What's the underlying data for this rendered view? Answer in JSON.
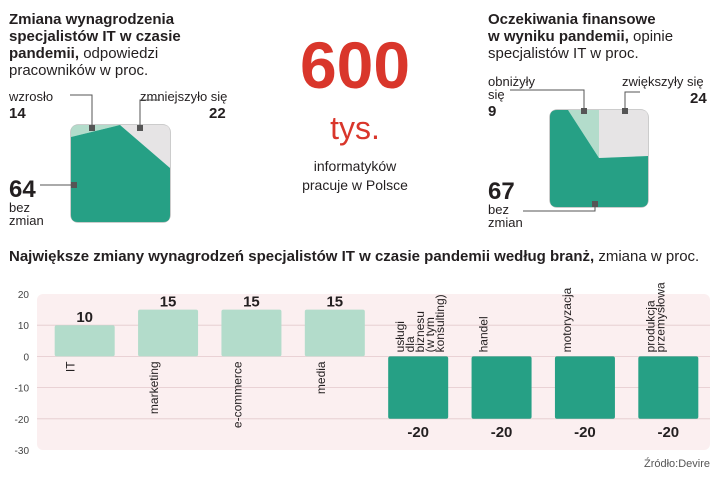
{
  "left_panel": {
    "title": "Zmiana wynagrodzenia specjalistów IT w czasie pandemii,",
    "title_lines": [
      "Zmiana wynagrodzenia",
      "specjalistów IT w czasie",
      "pandemii,"
    ],
    "subtitle_inline": "odpowiedzi",
    "subtitle_line2": "pracowników w proc.",
    "items": [
      {
        "label": "wzrosło",
        "value": "14",
        "share": 14,
        "color": "#b3dccb"
      },
      {
        "label": "zmniejszyło się",
        "value": "22",
        "share": 22,
        "color": "#e6e4e5"
      },
      {
        "label_lines": [
          "bez",
          "zmian"
        ],
        "value": "64",
        "share": 64,
        "color": "#26a085"
      }
    ]
  },
  "right_panel": {
    "title_lines": [
      "Oczekiwania finansowe",
      "w wyniku pandemii,"
    ],
    "subtitle_inline": "opinie",
    "subtitle_line2": "specjalistów IT w proc.",
    "items": [
      {
        "label_lines": [
          "obniżyły",
          "się"
        ],
        "value": "9",
        "share": 9,
        "color": "#b3dccb"
      },
      {
        "label": "zwiększyły się",
        "value": "24",
        "share": 24,
        "color": "#e6e4e5"
      },
      {
        "label_lines": [
          "bez",
          "zmian"
        ],
        "value": "67",
        "share": 67,
        "color": "#26a085"
      }
    ]
  },
  "center": {
    "big_number": "600",
    "unit": "tys.",
    "caption_lines": [
      "informatyków",
      "pracuje w Polsce"
    ],
    "accent": "#d9362b"
  },
  "bar_section": {
    "title_bold": "Największe zmiany wynagrodzeń specjalistów IT w czasie pandemii według branż,",
    "title_normal": "zmiana w proc.",
    "source": "Źródło:Devire"
  },
  "chart_data": {
    "type": "bar",
    "categories": [
      "IT",
      "marketing",
      "e-commerce",
      "media",
      "usługi dla biznesu (w tym konsulting)",
      "handel",
      "motoryzacja",
      "produkcja przemysłowa"
    ],
    "category_lines": [
      [
        "IT"
      ],
      [
        "marketing"
      ],
      [
        "e-commerce"
      ],
      [
        "media"
      ],
      [
        "usługi",
        "dla",
        "biznesu",
        "(w tym",
        "konsulting)"
      ],
      [
        "handel"
      ],
      [
        "motoryzacja"
      ],
      [
        "produkcja",
        "przemysłowa"
      ]
    ],
    "values": [
      10,
      15,
      15,
      15,
      -20,
      -20,
      -20,
      -20
    ],
    "value_labels": [
      "10",
      "15",
      "15",
      "15",
      "-20",
      "-20",
      "-20",
      "-20"
    ],
    "ylim": [
      -30,
      20
    ],
    "yticks": [
      "20",
      "10",
      "0",
      "-10",
      "-20",
      "-30"
    ],
    "ytick_values": [
      20,
      10,
      0,
      -10,
      -20,
      -30
    ],
    "colors": {
      "positive": "#b3dccb",
      "negative": "#26a085",
      "background": "#fbeff0"
    }
  }
}
